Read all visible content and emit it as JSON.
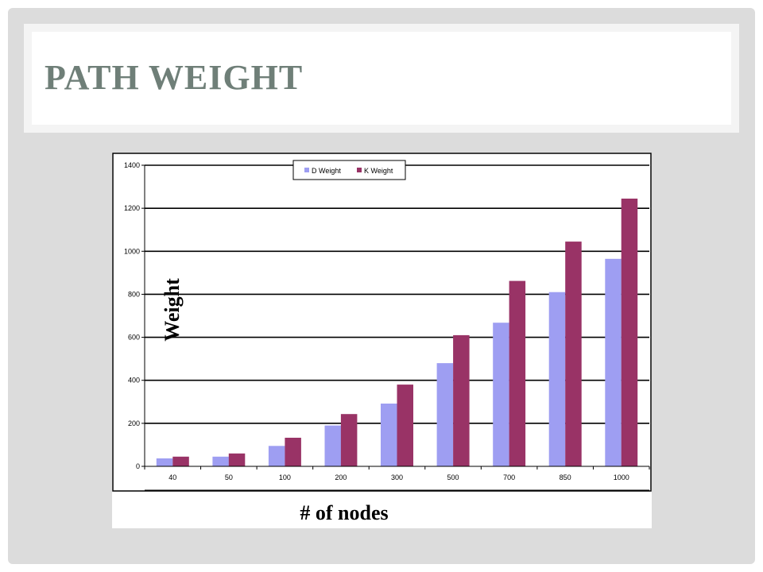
{
  "slide": {
    "title": "PATH WEIGHT"
  },
  "colors": {
    "d_weight": "#9e9ef2",
    "k_weight": "#993366",
    "title": "#6f7f78"
  },
  "chart_data": {
    "type": "bar",
    "title": "",
    "xlabel": "# of nodes",
    "ylabel": "Weight",
    "categories": [
      "40",
      "50",
      "100",
      "200",
      "300",
      "500",
      "700",
      "850",
      "1000"
    ],
    "series": [
      {
        "name": "D Weight",
        "values": [
          37,
          45,
          95,
          190,
          292,
          480,
          668,
          810,
          965
        ]
      },
      {
        "name": "K Weight",
        "values": [
          45,
          60,
          133,
          243,
          380,
          610,
          862,
          1045,
          1245
        ]
      }
    ],
    "ylim": [
      0,
      1400
    ],
    "yticks": [
      "0",
      "200",
      "400",
      "600",
      "800",
      "1000",
      "1200",
      "1400"
    ],
    "grid": true,
    "legend": "top-center"
  }
}
